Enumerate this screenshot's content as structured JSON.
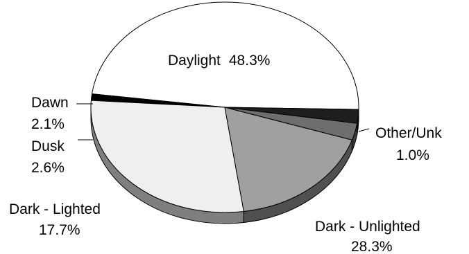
{
  "chart_data": {
    "type": "pie",
    "three_d": true,
    "slices": [
      {
        "category": "Daylight",
        "value": 48.3,
        "value_label": "48.3%",
        "top_color": "#ffffff",
        "side_color": "#ffffff"
      },
      {
        "category": "Other/Unk",
        "value": 1.0,
        "value_label": "1.0%",
        "top_color": "#000000",
        "side_color": "#000000"
      },
      {
        "category": "Dark - Unlighted",
        "value": 28.3,
        "value_label": "28.3%",
        "top_color": "#efefef",
        "side_color": "#7f7f7f"
      },
      {
        "category": "Dark - Lighted",
        "value": 17.7,
        "value_label": "17.7%",
        "top_color": "#a0a0a0",
        "side_color": "#505050"
      },
      {
        "category": "Dusk",
        "value": 2.6,
        "value_label": "2.6%",
        "top_color": "#6e6e6e",
        "side_color": "#3a3a3a"
      },
      {
        "category": "Dawn",
        "value": 2.1,
        "value_label": "2.1%",
        "top_color": "#1e1e1e",
        "side_color": "#101010"
      }
    ]
  }
}
